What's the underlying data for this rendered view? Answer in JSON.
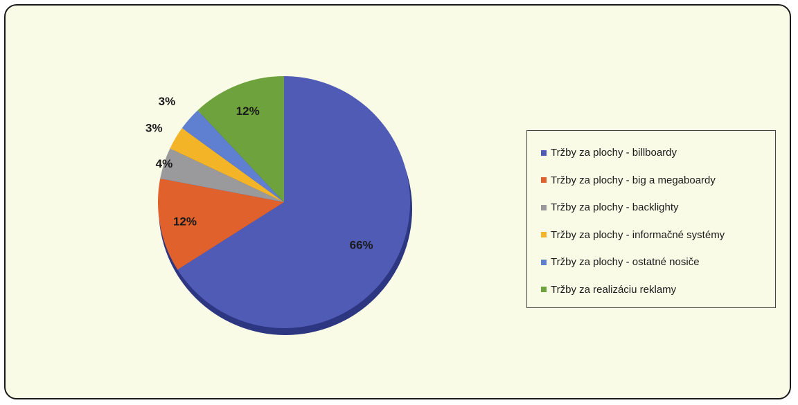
{
  "chart_data": {
    "type": "pie",
    "slices": [
      {
        "label": "Tržby za plochy - billboardy",
        "value": 66,
        "display": "66%",
        "color": "#4f5bb5"
      },
      {
        "label": "Tržby za plochy - big a megaboardy",
        "value": 12,
        "display": "12%",
        "color": "#e0612c"
      },
      {
        "label": "Tržby za plochy - backlighty",
        "value": 4,
        "display": "4%",
        "color": "#9a9a9c"
      },
      {
        "label": "Tržby za plochy - informačné systémy",
        "value": 3,
        "display": "3%",
        "color": "#f3b527"
      },
      {
        "label": "Tržby za plochy - ostatné nosiče",
        "value": 3,
        "display": "3%",
        "color": "#5f7fd1"
      },
      {
        "label": "Tržby za realizáciu reklamy",
        "value": 12,
        "display": "12%",
        "color": "#6ea23c"
      }
    ],
    "start_angle_deg": 0,
    "direction": "clockwise",
    "legend_position": "right",
    "three_d": true
  }
}
